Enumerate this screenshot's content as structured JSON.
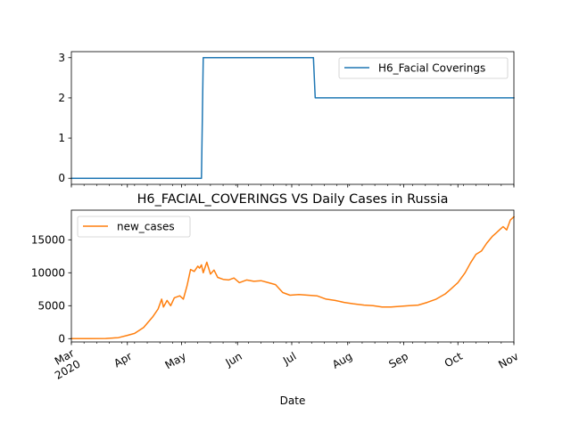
{
  "chart_data": [
    {
      "type": "line",
      "title": "",
      "xlabel": "",
      "ylabel": "",
      "ylim": [
        -0.15,
        3.15
      ],
      "xlim": [
        "2020-03-01",
        "2020-11-01"
      ],
      "yticks": [
        0,
        1,
        2,
        3
      ],
      "ytick_labels": [
        "0",
        "1",
        "2",
        "3"
      ],
      "grid": false,
      "legend_position": "upper-right",
      "series": [
        {
          "name": "H6_Facial Coverings",
          "color": "#1f77b4",
          "points": [
            [
              "2020-03-01",
              0
            ],
            [
              "2020-05-12",
              0
            ],
            [
              "2020-05-13",
              3
            ],
            [
              "2020-07-13",
              3
            ],
            [
              "2020-07-14",
              2
            ],
            [
              "2020-11-01",
              2
            ]
          ]
        }
      ]
    },
    {
      "type": "line",
      "title": "H6_FACIAL_COVERINGS VS Daily Cases in Russia",
      "xlabel": "Date",
      "ylabel": "",
      "ylim": [
        -500,
        19500
      ],
      "xlim": [
        "2020-03-01",
        "2020-11-01"
      ],
      "yticks": [
        0,
        5000,
        10000,
        15000
      ],
      "ytick_labels": [
        "0",
        "5000",
        "10000",
        "15000"
      ],
      "xticks": [
        "2020-03-01",
        "2020-04-01",
        "2020-05-01",
        "2020-06-01",
        "2020-07-01",
        "2020-08-01",
        "2020-09-01",
        "2020-10-01",
        "2020-11-01"
      ],
      "xtick_labels": [
        "Mar\n2020",
        "Apr",
        "May",
        "Jun",
        "Jul",
        "Aug",
        "Sep",
        "Oct",
        "Nov"
      ],
      "grid": false,
      "legend_position": "upper-left",
      "series": [
        {
          "name": "new_cases",
          "color": "#ff7f0e",
          "points": [
            [
              "2020-03-01",
              0
            ],
            [
              "2020-03-10",
              5
            ],
            [
              "2020-03-20",
              30
            ],
            [
              "2020-03-27",
              150
            ],
            [
              "2020-04-01",
              500
            ],
            [
              "2020-04-05",
              800
            ],
            [
              "2020-04-10",
              1700
            ],
            [
              "2020-04-15",
              3300
            ],
            [
              "2020-04-18",
              4500
            ],
            [
              "2020-04-20",
              6000
            ],
            [
              "2020-04-21",
              4800
            ],
            [
              "2020-04-23",
              5800
            ],
            [
              "2020-04-25",
              5000
            ],
            [
              "2020-04-27",
              6200
            ],
            [
              "2020-04-30",
              6500
            ],
            [
              "2020-05-02",
              6000
            ],
            [
              "2020-05-04",
              8000
            ],
            [
              "2020-05-06",
              10500
            ],
            [
              "2020-05-08",
              10200
            ],
            [
              "2020-05-10",
              11000
            ],
            [
              "2020-05-11",
              10700
            ],
            [
              "2020-05-12",
              11200
            ],
            [
              "2020-05-13",
              10000
            ],
            [
              "2020-05-15",
              11600
            ],
            [
              "2020-05-17",
              9800
            ],
            [
              "2020-05-19",
              10400
            ],
            [
              "2020-05-21",
              9300
            ],
            [
              "2020-05-24",
              9000
            ],
            [
              "2020-05-27",
              8900
            ],
            [
              "2020-05-30",
              9200
            ],
            [
              "2020-06-02",
              8500
            ],
            [
              "2020-06-06",
              8900
            ],
            [
              "2020-06-10",
              8700
            ],
            [
              "2020-06-14",
              8800
            ],
            [
              "2020-06-18",
              8500
            ],
            [
              "2020-06-22",
              8200
            ],
            [
              "2020-06-26",
              7000
            ],
            [
              "2020-06-30",
              6600
            ],
            [
              "2020-07-05",
              6700
            ],
            [
              "2020-07-10",
              6600
            ],
            [
              "2020-07-15",
              6500
            ],
            [
              "2020-07-20",
              6000
            ],
            [
              "2020-07-25",
              5800
            ],
            [
              "2020-07-30",
              5500
            ],
            [
              "2020-08-04",
              5300
            ],
            [
              "2020-08-10",
              5100
            ],
            [
              "2020-08-15",
              5000
            ],
            [
              "2020-08-20",
              4800
            ],
            [
              "2020-08-25",
              4800
            ],
            [
              "2020-08-30",
              4900
            ],
            [
              "2020-09-04",
              5000
            ],
            [
              "2020-09-09",
              5100
            ],
            [
              "2020-09-14",
              5500
            ],
            [
              "2020-09-19",
              6000
            ],
            [
              "2020-09-24",
              6800
            ],
            [
              "2020-09-27",
              7500
            ],
            [
              "2020-10-01",
              8500
            ],
            [
              "2020-10-05",
              10000
            ],
            [
              "2020-10-08",
              11500
            ],
            [
              "2020-10-11",
              12800
            ],
            [
              "2020-10-14",
              13300
            ],
            [
              "2020-10-17",
              14500
            ],
            [
              "2020-10-20",
              15500
            ],
            [
              "2020-10-22",
              16000
            ],
            [
              "2020-10-24",
              16500
            ],
            [
              "2020-10-26",
              17000
            ],
            [
              "2020-10-28",
              16500
            ],
            [
              "2020-10-30",
              18000
            ],
            [
              "2020-11-01",
              18500
            ]
          ]
        }
      ]
    }
  ]
}
